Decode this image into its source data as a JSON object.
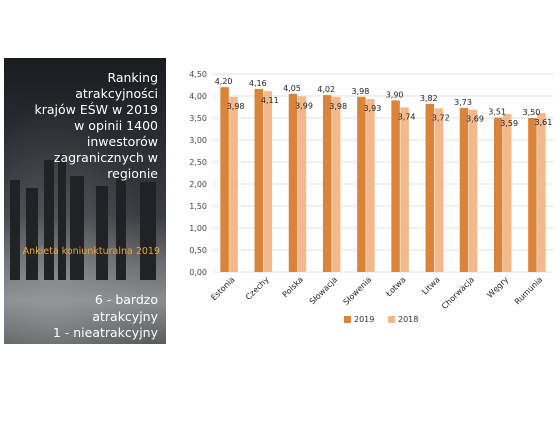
{
  "panel": {
    "title": "Ranking\natrakcyjności\nkrajów EŚW w 2019\nw opinii 1400\ninwestorów\nzagranicznych w\nregionie",
    "subtitle": "Ankieta koniunkturalna 2019",
    "scale_note": "6 - bardzo\natrakcyjny\n1 - nieatrakcyjny"
  },
  "chart_data": {
    "type": "bar",
    "categories": [
      "Estonia",
      "Czechy",
      "Polska",
      "Słowacja",
      "Słowenia",
      "Łotwa",
      "Litwa",
      "Chorwacja",
      "Węgry",
      "Rumunia"
    ],
    "series": [
      {
        "name": "2019",
        "color": "#d9843a",
        "values": [
          4.2,
          4.16,
          4.05,
          4.02,
          3.98,
          3.9,
          3.82,
          3.73,
          3.51,
          3.5
        ],
        "labels": [
          "4,20",
          "4,16",
          "4,05",
          "4,02",
          "3,98",
          "3,90",
          "3,82",
          "3,73",
          "3,51",
          "3,50"
        ]
      },
      {
        "name": "2018",
        "color": "#f4b98a",
        "values": [
          3.98,
          4.11,
          3.99,
          3.98,
          3.93,
          3.74,
          3.72,
          3.69,
          3.59,
          3.61
        ],
        "labels": [
          "3,98",
          "4,11",
          "3,99",
          "3,98",
          "3,93",
          "3,74",
          "3,72",
          "3,69",
          "3,59",
          "3,61"
        ]
      }
    ],
    "ylim": [
      0,
      4.5
    ],
    "yticks": [
      "0,00",
      "0,50",
      "1,00",
      "1,50",
      "2,00",
      "2,50",
      "3,00",
      "3,50",
      "4,00",
      "4,50"
    ],
    "grid": true,
    "legend_position": "bottom"
  }
}
